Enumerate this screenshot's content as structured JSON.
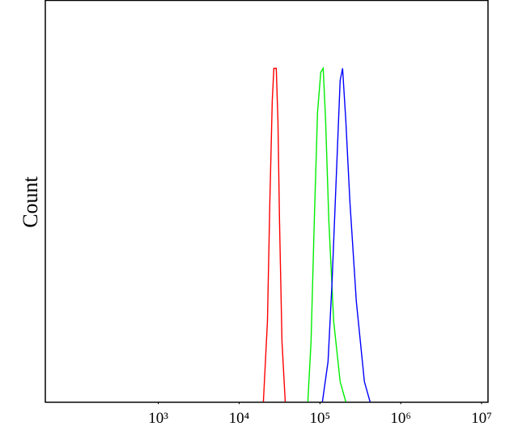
{
  "chart_data": {
    "type": "line",
    "y_label": "Count",
    "xscale": "log",
    "xlim": [
      40,
      12000000
    ],
    "ylim": [
      0,
      100
    ],
    "xticks": [
      {
        "value": 1000,
        "label": "10³"
      },
      {
        "value": 10000,
        "label": "10⁴"
      },
      {
        "value": 100000,
        "label": "10⁵"
      },
      {
        "value": 1000000,
        "label": "10⁶"
      },
      {
        "value": 10000000,
        "label": "10⁷"
      }
    ],
    "grid": false,
    "series": [
      {
        "color": "#ff0000",
        "x": [
          19950,
          22400,
          24000,
          25700,
          26900,
          28800,
          30200,
          31600,
          33900,
          37200
        ],
        "values": [
          0,
          20,
          50,
          75,
          83,
          83,
          70,
          45,
          15,
          0
        ]
      },
      {
        "color": "#00ee00",
        "x": [
          70800,
          77600,
          85100,
          93300,
          102300,
          109600,
          117500,
          128800,
          147900,
          177800,
          208900
        ],
        "values": [
          0,
          15,
          45,
          72,
          82,
          83,
          70,
          45,
          20,
          5,
          0
        ]
      },
      {
        "color": "#0000ff",
        "x": [
          107200,
          125900,
          141300,
          158500,
          177800,
          190500,
          208900,
          234400,
          281800,
          354800,
          416900
        ],
        "values": [
          0,
          10,
          30,
          55,
          80,
          83,
          70,
          50,
          25,
          5,
          0
        ]
      }
    ]
  }
}
